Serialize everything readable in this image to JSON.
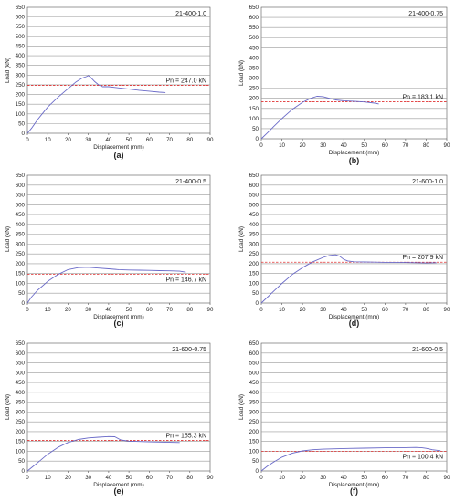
{
  "chart_data": [
    {
      "type": "line",
      "id": "21-400-1.0",
      "caption": "(a)",
      "xlabel": "Displacement (mm)",
      "ylabel": "Load (kN)",
      "xlim": [
        0,
        90
      ],
      "ylim": [
        0,
        650
      ],
      "xticks": [
        0,
        10,
        20,
        30,
        40,
        50,
        60,
        70,
        80,
        90
      ],
      "yticks": [
        0,
        50,
        100,
        150,
        200,
        250,
        300,
        350,
        400,
        450,
        500,
        550,
        600,
        650
      ],
      "grid": "horizontal",
      "pn_label": "Pn = 247.0 kN",
      "pn_value": 247.0,
      "pn_label_pos": "above",
      "series": [
        {
          "x": [
            0,
            2,
            5,
            10,
            15,
            20,
            24,
            27,
            29,
            30,
            31,
            33,
            35,
            37,
            40,
            45,
            50,
            55,
            60,
            65,
            68
          ],
          "y": [
            0,
            25,
            70,
            135,
            185,
            230,
            265,
            285,
            292,
            297,
            290,
            268,
            250,
            240,
            240,
            234,
            228,
            222,
            217,
            212,
            210
          ]
        }
      ]
    },
    {
      "type": "line",
      "id": "21-400-0.75",
      "caption": "(b)",
      "xlabel": "Displacement (mm)",
      "ylabel": "Load (kN)",
      "xlim": [
        0,
        90
      ],
      "ylim": [
        0,
        650
      ],
      "xticks": [
        0,
        10,
        20,
        30,
        40,
        50,
        60,
        70,
        80,
        90
      ],
      "yticks": [
        0,
        50,
        100,
        150,
        200,
        250,
        300,
        350,
        400,
        450,
        500,
        550,
        600,
        650
      ],
      "grid": "horizontal",
      "pn_label": "Pn = 183.1 kN",
      "pn_value": 183.1,
      "pn_label_pos": "above",
      "series": [
        {
          "x": [
            0,
            3,
            6,
            10,
            15,
            20,
            24,
            27,
            30,
            33,
            36,
            40,
            45,
            50,
            55,
            57
          ],
          "y": [
            0,
            30,
            60,
            100,
            145,
            180,
            200,
            210,
            208,
            200,
            192,
            188,
            185,
            182,
            176,
            172
          ]
        }
      ]
    },
    {
      "type": "line",
      "id": "21-400-0.5",
      "caption": "(c)",
      "xlabel": "Displacement (mm)",
      "ylabel": "Load (kN)",
      "xlim": [
        0,
        90
      ],
      "ylim": [
        0,
        650
      ],
      "xticks": [
        0,
        10,
        20,
        30,
        40,
        50,
        60,
        70,
        80,
        90
      ],
      "yticks": [
        0,
        50,
        100,
        150,
        200,
        250,
        300,
        350,
        400,
        450,
        500,
        550,
        600,
        650
      ],
      "grid": "horizontal",
      "pn_label": "Pn = 146.7 kN",
      "pn_value": 146.7,
      "pn_label_pos": "below",
      "series": [
        {
          "x": [
            0,
            2,
            5,
            10,
            15,
            20,
            25,
            30,
            35,
            40,
            45,
            50,
            55,
            60,
            65,
            70,
            75,
            78
          ],
          "y": [
            0,
            30,
            65,
            110,
            145,
            170,
            180,
            182,
            178,
            174,
            170,
            168,
            167,
            166,
            165,
            164,
            162,
            157
          ]
        }
      ]
    },
    {
      "type": "line",
      "id": "21-600-1.0",
      "caption": "(d)",
      "xlabel": "Displacement (mm)",
      "ylabel": "Load (kN)",
      "xlim": [
        0,
        90
      ],
      "ylim": [
        0,
        650
      ],
      "xticks": [
        0,
        10,
        20,
        30,
        40,
        50,
        60,
        70,
        80,
        90
      ],
      "yticks": [
        0,
        50,
        100,
        150,
        200,
        250,
        300,
        350,
        400,
        450,
        500,
        550,
        600,
        650
      ],
      "grid": "horizontal",
      "pn_label": "Pn = 207.9 kN",
      "pn_value": 207.9,
      "pn_label_pos": "above",
      "series": [
        {
          "x": [
            0,
            3,
            6,
            10,
            15,
            20,
            25,
            30,
            33,
            36,
            38,
            40,
            42,
            45,
            50,
            55,
            60,
            65,
            70,
            75,
            80,
            85
          ],
          "y": [
            0,
            30,
            60,
            100,
            145,
            180,
            210,
            232,
            242,
            245,
            238,
            222,
            214,
            210,
            209,
            208,
            207,
            207,
            206,
            205,
            204,
            205
          ]
        }
      ]
    },
    {
      "type": "line",
      "id": "21-600-0.75",
      "caption": "(e)",
      "xlabel": "Displacement (mm)",
      "ylabel": "Load (kN)",
      "xlim": [
        0,
        90
      ],
      "ylim": [
        0,
        650
      ],
      "xticks": [
        0,
        10,
        20,
        30,
        40,
        50,
        60,
        70,
        80,
        90
      ],
      "yticks": [
        0,
        50,
        100,
        150,
        200,
        250,
        300,
        350,
        400,
        450,
        500,
        550,
        600,
        650
      ],
      "grid": "horizontal",
      "pn_label": "Pn = 155.3 kN",
      "pn_value": 155.3,
      "pn_label_pos": "above",
      "series": [
        {
          "x": [
            0,
            3,
            6,
            10,
            15,
            20,
            25,
            30,
            35,
            40,
            43,
            46,
            50,
            55,
            60,
            65,
            70,
            75
          ],
          "y": [
            0,
            25,
            50,
            85,
            120,
            145,
            160,
            168,
            172,
            175,
            174,
            158,
            152,
            150,
            148,
            147,
            146,
            145
          ]
        }
      ]
    },
    {
      "type": "line",
      "id": "21-600-0.5",
      "caption": "(f)",
      "xlabel": "Displacement (mm)",
      "ylabel": "Load (kN)",
      "xlim": [
        0,
        90
      ],
      "ylim": [
        0,
        650
      ],
      "xticks": [
        0,
        10,
        20,
        30,
        40,
        50,
        60,
        70,
        80,
        90
      ],
      "yticks": [
        0,
        50,
        100,
        150,
        200,
        250,
        300,
        350,
        400,
        450,
        500,
        550,
        600,
        650
      ],
      "grid": "horizontal",
      "pn_label": "Pn = 100.4 kN",
      "pn_value": 100.4,
      "pn_label_pos": "below",
      "series": [
        {
          "x": [
            0,
            3,
            6,
            10,
            15,
            20,
            25,
            30,
            40,
            50,
            60,
            70,
            75,
            78,
            80,
            83,
            87
          ],
          "y": [
            0,
            25,
            45,
            70,
            90,
            102,
            108,
            111,
            114,
            116,
            118,
            119,
            120,
            118,
            115,
            108,
            103
          ]
        }
      ]
    }
  ],
  "colors": {
    "curve": "#6a6ac8",
    "pn_line": "#e03030",
    "grid": "#9a9a9a",
    "axis": "#555555"
  }
}
